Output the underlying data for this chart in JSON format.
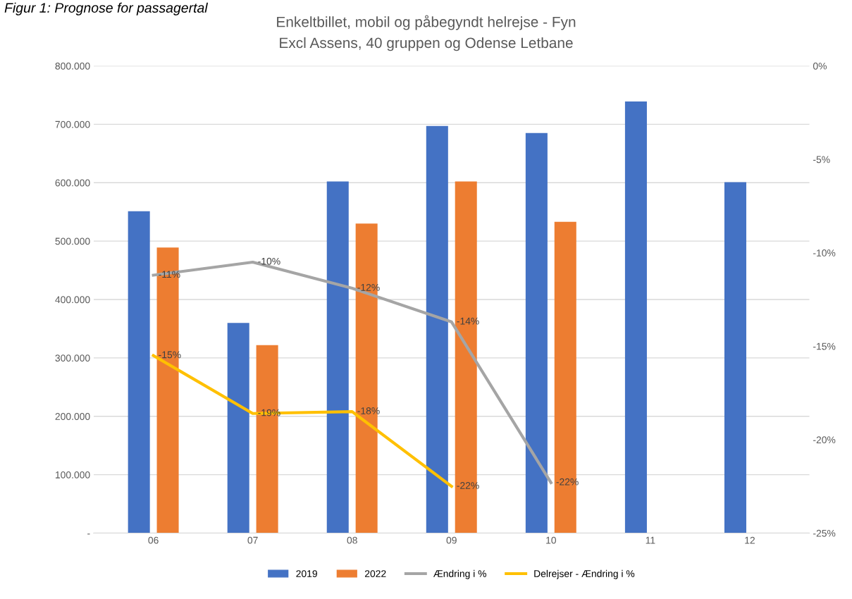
{
  "chart_data": {
    "type": "bar",
    "title": "Enkeltbillet, mobil og påbegyndt helrejse - Fyn",
    "subtitle": "Excl Assens, 40 gruppen og Odense Letbane",
    "annotations": [
      "Figur 1: Prognose for passagertal"
    ],
    "categories": [
      "06",
      "07",
      "08",
      "09",
      "10",
      "11",
      "12"
    ],
    "series": [
      {
        "name": "2019",
        "color": "#4472c4",
        "values": [
          551000,
          360000,
          602000,
          697000,
          685000,
          739000,
          601000
        ]
      },
      {
        "name": "2022",
        "color": "#ed7d31",
        "values": [
          489000,
          322000,
          530000,
          602000,
          533000,
          null,
          null
        ]
      },
      {
        "name": "Ændring i %",
        "type": "line",
        "axis": "y2",
        "color": "#a5a5a5",
        "values": [
          -11.2,
          -10.5,
          -11.9,
          -13.7,
          -22.3,
          null,
          null
        ],
        "value_labels": [
          "-11%",
          "-10%",
          "-12%",
          "-14%",
          "-22%",
          null,
          null
        ]
      },
      {
        "name": "Delrejser - Ændring i %",
        "type": "line",
        "axis": "y2",
        "color": "#ffc000",
        "values": [
          -15.5,
          -18.6,
          -18.5,
          -22.5,
          null,
          null,
          null
        ],
        "value_labels": [
          "-15%",
          "-19%",
          "-18%",
          "-22%",
          null,
          null,
          null
        ]
      }
    ],
    "ylim": [
      0,
      800000
    ],
    "yticks": [
      {
        "value": 0,
        "label": "-"
      },
      {
        "value": 100000,
        "label": "100.000"
      },
      {
        "value": 200000,
        "label": "200.000"
      },
      {
        "value": 300000,
        "label": "300.000"
      },
      {
        "value": 400000,
        "label": "400.000"
      },
      {
        "value": 500000,
        "label": "500.000"
      },
      {
        "value": 600000,
        "label": "600.000"
      },
      {
        "value": 700000,
        "label": "700.000"
      },
      {
        "value": 800000,
        "label": "800.000"
      }
    ],
    "y2lim": [
      -25,
      0
    ],
    "y2ticks": [
      {
        "value": -25,
        "label": "-25%"
      },
      {
        "value": -20,
        "label": "-20%"
      },
      {
        "value": -15,
        "label": "-15%"
      },
      {
        "value": -10,
        "label": "-10%"
      },
      {
        "value": -5,
        "label": "-5%"
      },
      {
        "value": 0,
        "label": "0%"
      }
    ],
    "grid": "y",
    "legend": "bottom",
    "marker": "none",
    "line_style": "solid"
  }
}
